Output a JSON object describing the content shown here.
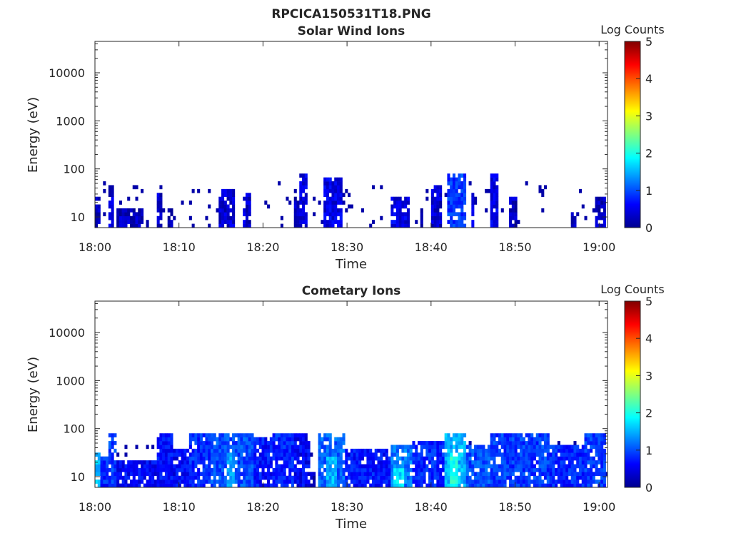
{
  "figure": {
    "title": "RPCICA150531T18.PNG"
  },
  "colorbar": {
    "label": "Log Counts",
    "ticks": [
      "0",
      "1",
      "2",
      "3",
      "4",
      "5"
    ],
    "range": [
      0,
      5
    ],
    "colormap": "jet"
  },
  "chart_data": [
    {
      "type": "heatmap",
      "title": "Solar Wind Ions",
      "xlabel": "Time",
      "ylabel": "Energy (eV)",
      "xlim": [
        "18:00",
        "19:01"
      ],
      "ylim": [
        6,
        45000
      ],
      "yscale": "log",
      "xticks": [
        "18:00",
        "18:10",
        "18:20",
        "18:30",
        "18:40",
        "18:50",
        "19:00"
      ],
      "yticks": [
        10,
        100,
        1000,
        10000
      ],
      "ytick_labels": [
        "10",
        "100",
        "1000",
        "10000"
      ],
      "grid": false,
      "colorbar_range": [
        0,
        5
      ],
      "patches": [
        {
          "t0": 0.0,
          "t1": 0.6,
          "e_max": 25,
          "level": 0.3
        },
        {
          "t0": 1.5,
          "t1": 2.2,
          "e_max": 45,
          "level": 0.4
        },
        {
          "t0": 2.5,
          "t1": 5.5,
          "e_max": 15,
          "level": 0.3
        },
        {
          "t0": 7.3,
          "t1": 7.7,
          "e_max": 28,
          "level": 0.3
        },
        {
          "t0": 8.5,
          "t1": 9.2,
          "e_max": 15,
          "level": 0.2
        },
        {
          "t0": 14.5,
          "t1": 16.5,
          "e_max": 35,
          "level": 0.4
        },
        {
          "t0": 17.5,
          "t1": 18.5,
          "e_max": 30,
          "level": 0.4
        },
        {
          "t0": 24.3,
          "t1": 25.2,
          "e_max": 80,
          "level": 0.5
        },
        {
          "t0": 23.5,
          "t1": 24.2,
          "e_max": 22,
          "level": 0.3
        },
        {
          "t0": 27.0,
          "t1": 29.2,
          "e_max": 60,
          "level": 0.5
        },
        {
          "t0": 35.0,
          "t1": 37.2,
          "e_max": 22,
          "level": 0.5
        },
        {
          "t0": 38.5,
          "t1": 39.0,
          "e_max": 15,
          "level": 0.3
        },
        {
          "t0": 40.0,
          "t1": 41.0,
          "e_max": 45,
          "level": 0.4
        },
        {
          "t0": 41.8,
          "t1": 44.0,
          "e_max": 80,
          "level": 0.9
        },
        {
          "t0": 44.5,
          "t1": 45.0,
          "e_max": 35,
          "level": 0.4
        },
        {
          "t0": 46.8,
          "t1": 48.0,
          "e_max": 80,
          "level": 0.5
        },
        {
          "t0": 49.0,
          "t1": 50.0,
          "e_max": 22,
          "level": 0.3
        },
        {
          "t0": 56.5,
          "t1": 57.2,
          "e_max": 12,
          "level": 0.3
        },
        {
          "t0": 59.5,
          "t1": 60.6,
          "e_max": 22,
          "level": 0.3
        }
      ]
    },
    {
      "type": "heatmap",
      "title": "Cometary Ions",
      "xlabel": "Time",
      "ylabel": "Energy (eV)",
      "xlim": [
        "18:00",
        "19:01"
      ],
      "ylim": [
        6,
        45000
      ],
      "yscale": "log",
      "xticks": [
        "18:00",
        "18:10",
        "18:20",
        "18:30",
        "18:40",
        "18:50",
        "19:00"
      ],
      "yticks": [
        10,
        100,
        1000,
        10000
      ],
      "ytick_labels": [
        "10",
        "100",
        "1000",
        "10000"
      ],
      "grid": false,
      "colorbar_range": [
        0,
        5
      ],
      "patches": [
        {
          "t0": 0.0,
          "t1": 0.4,
          "e_max": 30,
          "level": 1.6
        },
        {
          "t0": 0.4,
          "t1": 1.5,
          "e_max": 22,
          "level": 0.8
        },
        {
          "t0": 1.5,
          "t1": 2.3,
          "e_max": 80,
          "level": 0.9
        },
        {
          "t0": 2.3,
          "t1": 7.3,
          "e_max": 20,
          "level": 0.6
        },
        {
          "t0": 7.3,
          "t1": 9.0,
          "e_max": 80,
          "level": 0.7
        },
        {
          "t0": 9.0,
          "t1": 11.0,
          "e_max": 35,
          "level": 0.6
        },
        {
          "t0": 11.0,
          "t1": 13.5,
          "e_max": 80,
          "level": 0.8
        },
        {
          "t0": 13.5,
          "t1": 18.8,
          "e_max": 80,
          "level": 1.0
        },
        {
          "t0": 15.5,
          "t1": 16.5,
          "e_max": 30,
          "level": 1.4
        },
        {
          "t0": 18.8,
          "t1": 21.0,
          "e_max": 60,
          "level": 0.7
        },
        {
          "t0": 21.0,
          "t1": 23.5,
          "e_max": 80,
          "level": 0.8
        },
        {
          "t0": 23.5,
          "t1": 25.3,
          "e_max": 80,
          "level": 0.6
        },
        {
          "t0": 25.3,
          "t1": 26.0,
          "e_max": 12,
          "level": 0.3
        },
        {
          "t0": 26.5,
          "t1": 29.5,
          "e_max": 80,
          "level": 1.1
        },
        {
          "t0": 27.5,
          "t1": 28.5,
          "e_max": 25,
          "level": 1.5
        },
        {
          "t0": 29.5,
          "t1": 35.0,
          "e_max": 35,
          "level": 0.7
        },
        {
          "t0": 35.0,
          "t1": 37.5,
          "e_max": 45,
          "level": 1.2
        },
        {
          "t0": 35.5,
          "t1": 36.5,
          "e_max": 15,
          "level": 1.7
        },
        {
          "t0": 37.5,
          "t1": 41.5,
          "e_max": 50,
          "level": 0.8
        },
        {
          "t0": 41.5,
          "t1": 44.0,
          "e_max": 80,
          "level": 1.5
        },
        {
          "t0": 42.2,
          "t1": 43.2,
          "e_max": 30,
          "level": 2.0
        },
        {
          "t0": 44.0,
          "t1": 46.8,
          "e_max": 45,
          "level": 1.0
        },
        {
          "t0": 46.8,
          "t1": 50.0,
          "e_max": 80,
          "level": 0.9
        },
        {
          "t0": 50.0,
          "t1": 54.0,
          "e_max": 80,
          "level": 0.9
        },
        {
          "t0": 54.0,
          "t1": 58.0,
          "e_max": 45,
          "level": 0.8
        },
        {
          "t0": 58.0,
          "t1": 60.6,
          "e_max": 80,
          "level": 0.9
        }
      ]
    }
  ]
}
